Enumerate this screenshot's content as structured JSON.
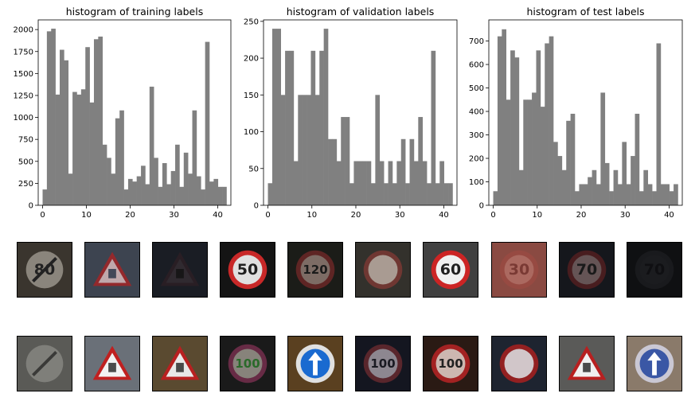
{
  "chart_data": [
    {
      "type": "bar",
      "title": "histogram of training labels",
      "xlabel": "",
      "ylabel": "",
      "xlim": [
        -1,
        43
      ],
      "ylim": [
        0,
        2110
      ],
      "xticks": [
        0,
        10,
        20,
        30,
        40
      ],
      "yticks": [
        0,
        250,
        500,
        750,
        1000,
        1250,
        1500,
        1750,
        2000
      ],
      "color": "#808080",
      "x": [
        0,
        1,
        2,
        3,
        4,
        5,
        6,
        7,
        8,
        9,
        10,
        11,
        12,
        13,
        14,
        15,
        16,
        17,
        18,
        19,
        20,
        21,
        22,
        23,
        24,
        25,
        26,
        27,
        28,
        29,
        30,
        31,
        32,
        33,
        34,
        35,
        36,
        37,
        38,
        39,
        40,
        41,
        42
      ],
      "values": [
        180,
        1980,
        2010,
        1260,
        1770,
        1650,
        360,
        1290,
        1260,
        1320,
        1800,
        1170,
        1890,
        1920,
        690,
        540,
        360,
        990,
        1080,
        180,
        300,
        270,
        330,
        450,
        240,
        1350,
        540,
        210,
        480,
        240,
        390,
        690,
        210,
        599,
        360,
        1080,
        330,
        180,
        1860,
        270,
        300,
        210,
        210
      ]
    },
    {
      "type": "bar",
      "title": "histogram of validation labels",
      "xlabel": "",
      "ylabel": "",
      "xlim": [
        -1,
        43
      ],
      "ylim": [
        0,
        252
      ],
      "xticks": [
        0,
        10,
        20,
        30,
        40
      ],
      "yticks": [
        0,
        50,
        100,
        150,
        200,
        250
      ],
      "color": "#808080",
      "x": [
        0,
        1,
        2,
        3,
        4,
        5,
        6,
        7,
        8,
        9,
        10,
        11,
        12,
        13,
        14,
        15,
        16,
        17,
        18,
        19,
        20,
        21,
        22,
        23,
        24,
        25,
        26,
        27,
        28,
        29,
        30,
        31,
        32,
        33,
        34,
        35,
        36,
        37,
        38,
        39,
        40,
        41,
        42
      ],
      "values": [
        30,
        240,
        240,
        150,
        210,
        210,
        60,
        150,
        150,
        150,
        210,
        150,
        210,
        240,
        90,
        90,
        60,
        120,
        120,
        30,
        60,
        60,
        60,
        60,
        30,
        150,
        60,
        30,
        60,
        30,
        60,
        90,
        30,
        90,
        60,
        120,
        60,
        30,
        210,
        30,
        60,
        30,
        30
      ]
    },
    {
      "type": "bar",
      "title": "histogram of test labels",
      "xlabel": "",
      "ylabel": "",
      "xlim": [
        -1,
        43
      ],
      "ylim": [
        0,
        790
      ],
      "xticks": [
        0,
        10,
        20,
        30,
        40
      ],
      "yticks": [
        0,
        100,
        200,
        300,
        400,
        500,
        600,
        700
      ],
      "color": "#808080",
      "x": [
        0,
        1,
        2,
        3,
        4,
        5,
        6,
        7,
        8,
        9,
        10,
        11,
        12,
        13,
        14,
        15,
        16,
        17,
        18,
        19,
        20,
        21,
        22,
        23,
        24,
        25,
        26,
        27,
        28,
        29,
        30,
        31,
        32,
        33,
        34,
        35,
        36,
        37,
        38,
        39,
        40,
        41,
        42
      ],
      "values": [
        60,
        720,
        750,
        450,
        660,
        630,
        150,
        450,
        450,
        480,
        660,
        420,
        690,
        720,
        270,
        210,
        150,
        360,
        390,
        60,
        90,
        90,
        120,
        150,
        90,
        480,
        180,
        60,
        150,
        90,
        270,
        90,
        210,
        390,
        60,
        150,
        90,
        60,
        690,
        90,
        90,
        60,
        90
      ]
    }
  ],
  "sample_images": {
    "row1": [
      {
        "icon": "end-of-speed-limit-80-sign-icon",
        "text": "80",
        "bg": "#3a352e",
        "face": "#bfbab0",
        "ring": "none",
        "ink": "#222222",
        "lit": 0.6
      },
      {
        "icon": "beware-ice-snow-sign-icon",
        "text": "",
        "bg": "#3d4450",
        "face": "#cfd3d6",
        "ring": "#b02020",
        "ink": "#223044",
        "lit": 0.75
      },
      {
        "icon": "general-caution-sign-icon",
        "text": "",
        "bg": "#1a1d24",
        "face": "#3a3a40",
        "ring": "#3c2225",
        "ink": "#111111",
        "lit": 0.45
      },
      {
        "icon": "speed-limit-50-sign-icon",
        "text": "50",
        "bg": "#141414",
        "face": "#e0e0e0",
        "ring": "#c82828",
        "ink": "#202020",
        "lit": 1.0
      },
      {
        "icon": "speed-limit-120-sign-icon",
        "text": "120",
        "bg": "#1b1c18",
        "face": "#8a8a82",
        "ring": "#7a2a2a",
        "ink": "#1b1b1b",
        "lit": 0.7
      },
      {
        "icon": "no-passing-trucks-sign-icon",
        "text": "",
        "bg": "#33312c",
        "face": "#b8b4aa",
        "ring": "#7e3a34",
        "ink": "#8a2020",
        "lit": 0.8
      },
      {
        "icon": "speed-limit-60-sign-icon",
        "text": "60",
        "bg": "#404040",
        "face": "#f0f0f0",
        "ring": "#cc2424",
        "ink": "#202020",
        "lit": 1.0
      },
      {
        "icon": "speed-limit-30-sign-icon",
        "text": "30",
        "bg": "#8a4a42",
        "face": "#b07068",
        "ring": "#9a4a42",
        "ink": "#7a3a34",
        "lit": 0.8
      },
      {
        "icon": "speed-limit-70-sign-icon",
        "text": "70",
        "bg": "#15171c",
        "face": "#7a7a7a",
        "ring": "#6a2222",
        "ink": "#1a1a1a",
        "lit": 0.6
      },
      {
        "icon": "speed-limit-70-dark-sign-icon",
        "text": "70",
        "bg": "#0f1012",
        "face": "#1e1e22",
        "ring": "#232327",
        "ink": "#0f0f12",
        "lit": 0.5
      }
    ],
    "row2": [
      {
        "icon": "end-of-restrictions-sign-icon",
        "text": "",
        "bg": "#5a5a56",
        "face": "#8e8e8a",
        "ring": "none",
        "ink": "#3a3a38",
        "lit": 0.7
      },
      {
        "icon": "road-narrows-sign-icon",
        "text": "",
        "bg": "#6a7078",
        "face": "#f2f2f2",
        "ring": "#c02020",
        "ink": "#202020",
        "lit": 1.0
      },
      {
        "icon": "slippery-road-sign-icon",
        "text": "",
        "bg": "#5a4a30",
        "face": "#e8e8e8",
        "ring": "#b82020",
        "ink": "#202020",
        "lit": 1.0
      },
      {
        "icon": "speed-limit-100-sign-icon",
        "text": "100",
        "bg": "#1a1a1a",
        "face": "#909a88",
        "ring": "#7a3050",
        "ink": "#2a6a2a",
        "lit": 0.8
      },
      {
        "icon": "ahead-only-sign-icon",
        "text": "",
        "bg": "#5a4020",
        "face": "#1a6ad0",
        "ring": "#e0e0e0",
        "ink": "#ffffff",
        "lit": 1.0
      },
      {
        "icon": "speed-limit-100-sign-icon-2",
        "text": "100",
        "bg": "#141620",
        "face": "#9aa0aa",
        "ring": "#6a2a30",
        "ink": "#1a1a22",
        "lit": 0.8
      },
      {
        "icon": "speed-limit-100-sign-icon-3",
        "text": "100",
        "bg": "#2a1a14",
        "face": "#d0c8c0",
        "ring": "#b02424",
        "ink": "#222222",
        "lit": 0.9
      },
      {
        "icon": "no-passing-trucks-sign-icon-2",
        "text": "",
        "bg": "#1e2430",
        "face": "#d8d8dc",
        "ring": "#a02020",
        "ink": "#a02020",
        "lit": 0.9
      },
      {
        "icon": "right-of-way-sign-icon",
        "text": "",
        "bg": "#5a5a58",
        "face": "#f0f0f0",
        "ring": "#b82020",
        "ink": "#202020",
        "lit": 1.0
      },
      {
        "icon": "keep-right-sign-icon",
        "text": "",
        "bg": "#8a7a6a",
        "face": "#2a4aa0",
        "ring": "#d0d0e0",
        "ink": "#ffffff",
        "lit": 0.9
      }
    ]
  }
}
